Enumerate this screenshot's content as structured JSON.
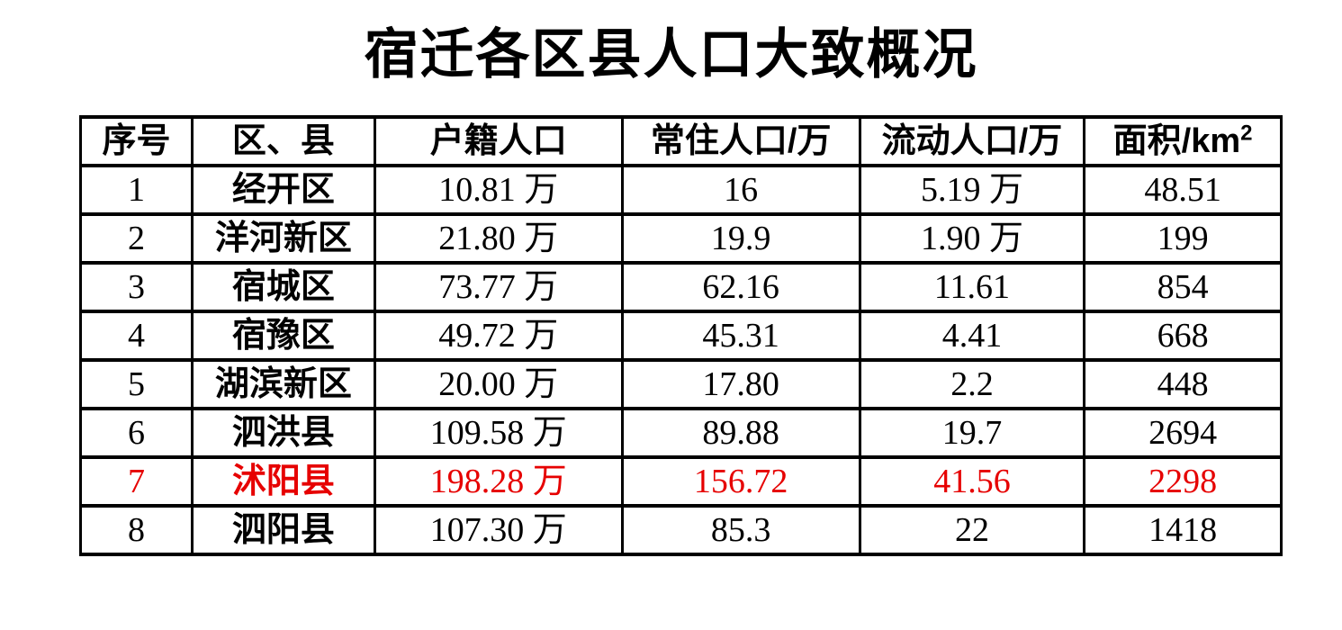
{
  "title": "宿迁各区县人口大致概况",
  "colors": {
    "background": "#ffffff",
    "text": "#000000",
    "border": "#000000",
    "highlight_red": "#e60000"
  },
  "chart_data": {
    "type": "table",
    "title": "宿迁各区县人口大致概况",
    "columns": [
      "序号",
      "区、县",
      "户籍人口",
      "常住人口/万",
      "流动人口/万",
      "面积/km²"
    ],
    "col_widths_pct": [
      9.3,
      15.2,
      20.6,
      19.8,
      18.7,
      16.4
    ],
    "rows": [
      [
        "1",
        "经开区",
        "10.81 万",
        "16",
        "5.19 万",
        "48.51"
      ],
      [
        "2",
        "洋河新区",
        "21.80 万",
        "19.9",
        "1.90 万",
        "199"
      ],
      [
        "3",
        "宿城区",
        "73.77 万",
        "62.16",
        "11.61",
        "854"
      ],
      [
        "4",
        "宿豫区",
        "49.72 万",
        "45.31",
        "4.41",
        "668"
      ],
      [
        "5",
        "湖滨新区",
        "20.00 万",
        "17.80",
        "2.2",
        "448"
      ],
      [
        "6",
        "泗洪县",
        "109.58 万",
        "89.88",
        "19.7",
        "2694"
      ],
      [
        "7",
        "沭阳县",
        "198.28 万",
        "156.72",
        "41.56",
        "2298"
      ],
      [
        "8",
        "泗阳县",
        "107.30 万",
        "85.3",
        "22",
        "1418"
      ]
    ],
    "highlighted_row_index": 6,
    "highlight_color": "#e60000"
  }
}
